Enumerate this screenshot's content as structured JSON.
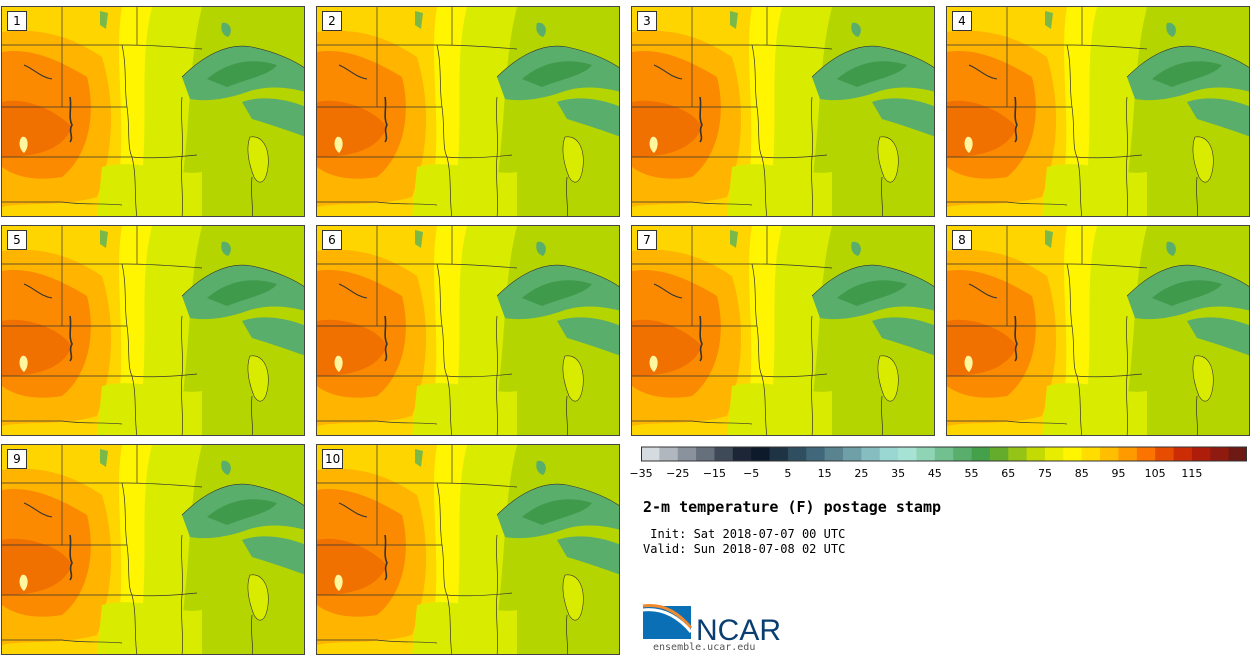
{
  "panels": [
    {
      "label": "1"
    },
    {
      "label": "2"
    },
    {
      "label": "3"
    },
    {
      "label": "4"
    },
    {
      "label": "5"
    },
    {
      "label": "6"
    },
    {
      "label": "7"
    },
    {
      "label": "8"
    },
    {
      "label": "9"
    },
    {
      "label": "10"
    }
  ],
  "colorbar": {
    "colors": [
      "#d6dbe0",
      "#b0b7bf",
      "#8a939d",
      "#66707c",
      "#3f4a58",
      "#1c2636",
      "#0c1a2b",
      "#1e3343",
      "#2f4e60",
      "#41687a",
      "#58838f",
      "#6fa0a8",
      "#85bdc1",
      "#9ad6d2",
      "#a7e3d5",
      "#8fd4b4",
      "#72c08f",
      "#5aae6b",
      "#45a04a",
      "#66ac2c",
      "#96c416",
      "#c4da05",
      "#e8ec00",
      "#fff500",
      "#ffdd00",
      "#ffbe00",
      "#ff9b00",
      "#fb7400",
      "#e74d00",
      "#cc2d05",
      "#ad1d0a",
      "#8f1a10",
      "#6e1a14"
    ],
    "tick_labels": [
      "−35",
      "−25",
      "−15",
      "−5",
      "5",
      "15",
      "25",
      "35",
      "45",
      "55",
      "65",
      "75",
      "85",
      "95",
      "105",
      "115"
    ]
  },
  "title": "2-m temperature (F) postage stamp",
  "init_text": " Init: Sat 2018-07-07 00 UTC",
  "valid_text": "Valid: Sun 2018-07-08 02 UTC",
  "logo": {
    "text": "NCAR",
    "url": "ensemble.ucar.edu",
    "blue": "#0a6fb5",
    "orange": "#f08a2e"
  },
  "map_colors": {
    "hot": "#fb8a00",
    "warm": "#ffb400",
    "mild": "#ffd500",
    "yellow": "#fff500",
    "lime": "#d9ec00",
    "green": "#b5d500",
    "water_deep": "#3f9a4c",
    "water_mid": "#5aae6b",
    "lake_mi": "#d9ec00",
    "hot_core": "#f07000"
  }
}
